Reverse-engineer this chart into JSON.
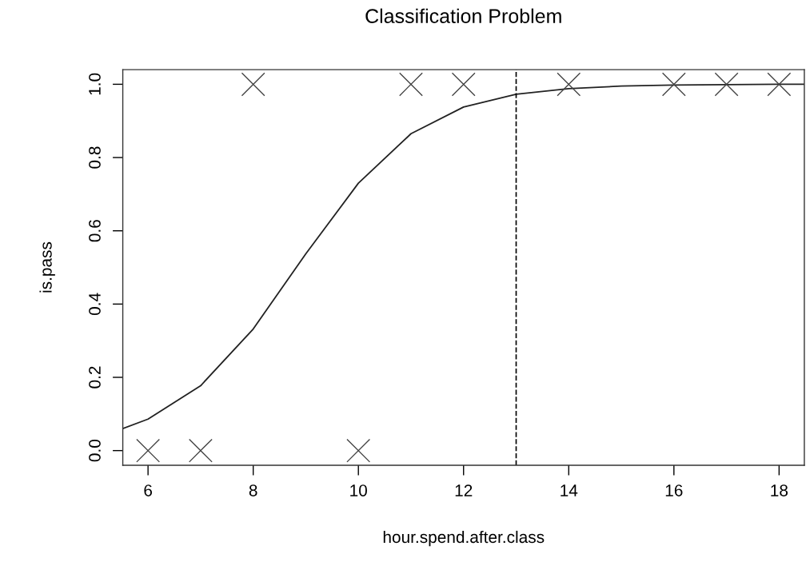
{
  "chart_data": {
    "type": "scatter",
    "title": "Classification Problem",
    "xlabel": "hour.spend.after.class",
    "ylabel": "is.pass",
    "xlim": [
      5.52,
      18.48
    ],
    "xticks": [
      6,
      8,
      10,
      12,
      14,
      16,
      18
    ],
    "ylim": [
      -0.04,
      1.04
    ],
    "yticks": [
      {
        "value": 0,
        "label": "0.0"
      },
      0.2,
      0.4,
      0.6,
      0.8,
      {
        "value": 1,
        "label": "1.0"
      }
    ],
    "marker": "cross",
    "grid": false,
    "series": [
      {
        "color": "#444444",
        "x": [
          6,
          7,
          8,
          10,
          11,
          12,
          14,
          16,
          17,
          18
        ],
        "values": [
          0,
          0,
          1,
          0,
          1,
          1,
          1,
          1,
          1,
          1
        ]
      },
      {
        "type": "line",
        "color": "#222222",
        "marker": "none",
        "x": [
          5.52,
          6,
          7,
          8,
          9,
          10,
          11,
          12,
          13,
          14,
          15,
          16,
          17,
          18,
          18.48
        ],
        "values": [
          0.06,
          0.086,
          0.177,
          0.332,
          0.537,
          0.73,
          0.865,
          0.938,
          0.973,
          0.988,
          0.995,
          0.998,
          0.999,
          1.0,
          1.0
        ]
      }
    ],
    "ref_lines": [
      {
        "axis": "x",
        "value": 13,
        "line_style": "dashed",
        "color": "#000000"
      }
    ]
  }
}
